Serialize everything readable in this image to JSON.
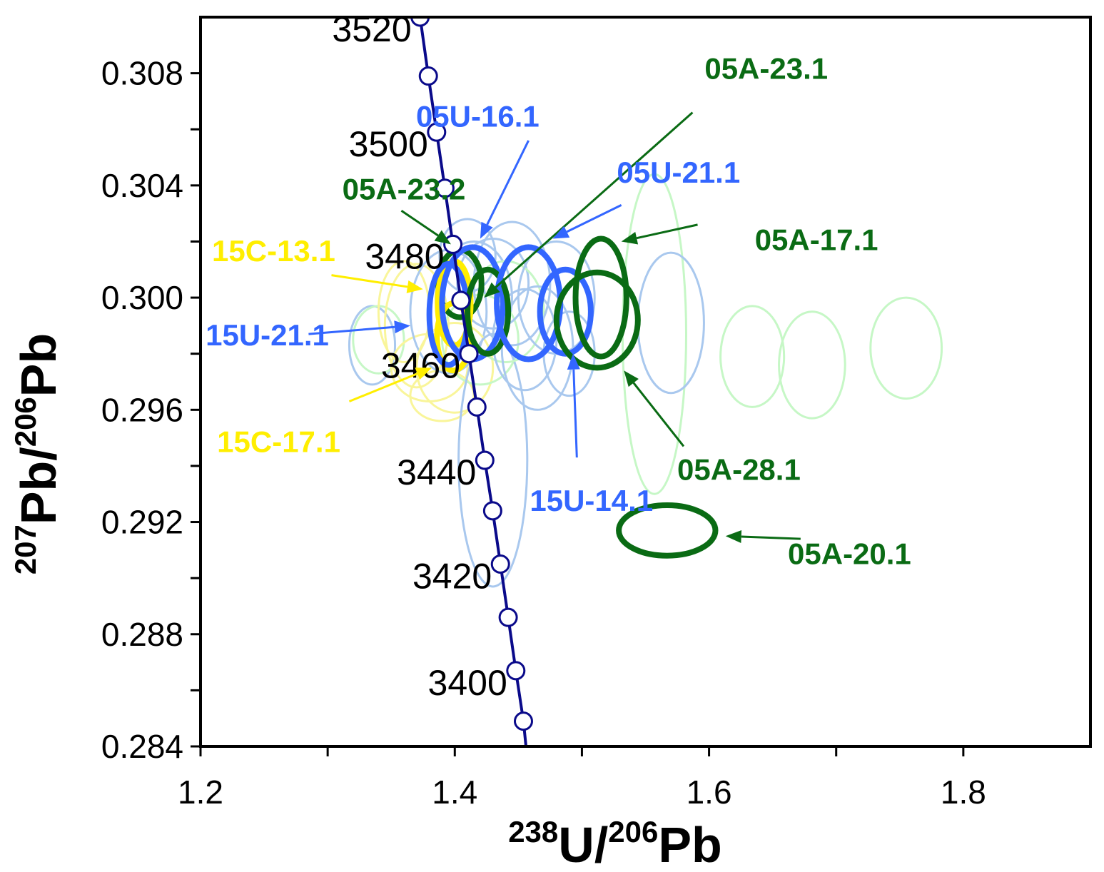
{
  "chart_data": {
    "type": "scatter",
    "xlabel": {
      "sup1": "238",
      "main1": "U/",
      "sup2": "206",
      "main2": "Pb"
    },
    "ylabel": {
      "sup1": "207",
      "main1": "Pb/",
      "sup2": "206",
      "main2": "Pb"
    },
    "xlim": [
      1.2,
      1.9
    ],
    "ylim": [
      0.284,
      0.31
    ],
    "x_ticks": [
      1.2,
      1.3,
      1.4,
      1.5,
      1.6,
      1.7,
      1.8
    ],
    "x_tick_labels": [
      "1.2",
      "",
      "1.4",
      "",
      "1.6",
      "",
      "1.8"
    ],
    "y_ticks": [
      0.284,
      0.286,
      0.288,
      0.29,
      0.292,
      0.294,
      0.296,
      0.298,
      0.3,
      0.302,
      0.304,
      0.306,
      0.308
    ],
    "y_tick_labels": [
      "0.284",
      "",
      "0.288",
      "",
      "0.292",
      "",
      "0.296",
      "",
      "0.300",
      "",
      "0.304",
      "",
      "0.308"
    ],
    "grid": false,
    "colors": {
      "concordia": "#0a0a8a",
      "green_dark": "#0a6b14",
      "blue": "#3366ff",
      "yellow": "#ffee00",
      "light_blue": "#a9c8ee",
      "light_green": "#c6f7c6",
      "light_yellow": "#f9f59a"
    },
    "concordia": {
      "points": [
        {
          "x": 1.3727,
          "y": 0.31,
          "age": 3520
        },
        {
          "x": 1.3792,
          "y": 0.3079,
          "age": 3510
        },
        {
          "x": 1.3857,
          "y": 0.3059,
          "age": 3500
        },
        {
          "x": 1.3922,
          "y": 0.3039,
          "age": 3490
        },
        {
          "x": 1.3985,
          "y": 0.3019,
          "age": 3480
        },
        {
          "x": 1.4048,
          "y": 0.2999,
          "age": 3470
        },
        {
          "x": 1.4111,
          "y": 0.298,
          "age": 3460
        },
        {
          "x": 1.4174,
          "y": 0.2961,
          "age": 3450
        },
        {
          "x": 1.4236,
          "y": 0.2942,
          "age": 3440
        },
        {
          "x": 1.4298,
          "y": 0.2924,
          "age": 3430
        },
        {
          "x": 1.4359,
          "y": 0.2905,
          "age": 3420
        },
        {
          "x": 1.442,
          "y": 0.2886,
          "age": 3410
        },
        {
          "x": 1.448,
          "y": 0.2867,
          "age": 3400
        },
        {
          "x": 1.454,
          "y": 0.2849,
          "age": 3390
        }
      ],
      "age_labels": [
        {
          "text": "3520",
          "age": 3520
        },
        {
          "text": "3500",
          "age": 3500
        },
        {
          "text": "3480",
          "age": 3480
        },
        {
          "text": "3460",
          "age": 3460
        },
        {
          "text": "3440",
          "age": 3440
        },
        {
          "text": "3420",
          "age": 3420
        },
        {
          "text": "3400",
          "age": 3400
        }
      ]
    },
    "background_ellipses": [
      {
        "cx": 1.335,
        "cy": 0.2983,
        "rx": 0.018,
        "ry": 0.0014,
        "color": "light_blue"
      },
      {
        "cx": 1.34,
        "cy": 0.2985,
        "rx": 0.02,
        "ry": 0.0012,
        "color": "light_green"
      },
      {
        "cx": 1.36,
        "cy": 0.2995,
        "rx": 0.02,
        "ry": 0.0018,
        "color": "light_yellow"
      },
      {
        "cx": 1.37,
        "cy": 0.299,
        "rx": 0.025,
        "ry": 0.0022,
        "color": "light_yellow"
      },
      {
        "cx": 1.38,
        "cy": 0.2975,
        "rx": 0.03,
        "ry": 0.0012,
        "color": "light_yellow"
      },
      {
        "cx": 1.39,
        "cy": 0.2965,
        "rx": 0.025,
        "ry": 0.0009,
        "color": "light_yellow"
      },
      {
        "cx": 1.395,
        "cy": 0.2995,
        "rx": 0.03,
        "ry": 0.0022,
        "color": "light_blue"
      },
      {
        "cx": 1.4,
        "cy": 0.2975,
        "rx": 0.03,
        "ry": 0.0016,
        "color": "light_yellow"
      },
      {
        "cx": 1.41,
        "cy": 0.3015,
        "rx": 0.022,
        "ry": 0.0013,
        "color": "light_blue"
      },
      {
        "cx": 1.415,
        "cy": 0.3,
        "rx": 0.03,
        "ry": 0.002,
        "color": "light_blue"
      },
      {
        "cx": 1.42,
        "cy": 0.2985,
        "rx": 0.03,
        "ry": 0.0016,
        "color": "light_green"
      },
      {
        "cx": 1.43,
        "cy": 0.3005,
        "rx": 0.028,
        "ry": 0.0016,
        "color": "light_blue"
      },
      {
        "cx": 1.43,
        "cy": 0.2942,
        "rx": 0.027,
        "ry": 0.0045,
        "color": "light_blue"
      },
      {
        "cx": 1.44,
        "cy": 0.2995,
        "rx": 0.03,
        "ry": 0.0018,
        "color": "light_green"
      },
      {
        "cx": 1.445,
        "cy": 0.3005,
        "rx": 0.03,
        "ry": 0.0022,
        "color": "light_blue"
      },
      {
        "cx": 1.455,
        "cy": 0.2985,
        "rx": 0.025,
        "ry": 0.0018,
        "color": "light_blue"
      },
      {
        "cx": 1.465,
        "cy": 0.2982,
        "rx": 0.028,
        "ry": 0.0022,
        "color": "light_blue"
      },
      {
        "cx": 1.48,
        "cy": 0.3,
        "rx": 0.03,
        "ry": 0.002,
        "color": "light_blue"
      },
      {
        "cx": 1.49,
        "cy": 0.298,
        "rx": 0.02,
        "ry": 0.0015,
        "color": "light_blue"
      },
      {
        "cx": 1.557,
        "cy": 0.2987,
        "rx": 0.025,
        "ry": 0.0057,
        "color": "light_green"
      },
      {
        "cx": 1.57,
        "cy": 0.2991,
        "rx": 0.026,
        "ry": 0.0025,
        "color": "light_blue"
      },
      {
        "cx": 1.634,
        "cy": 0.2979,
        "rx": 0.025,
        "ry": 0.0018,
        "color": "light_green"
      },
      {
        "cx": 1.681,
        "cy": 0.2976,
        "rx": 0.026,
        "ry": 0.0019,
        "color": "light_green"
      },
      {
        "cx": 1.755,
        "cy": 0.2982,
        "rx": 0.028,
        "ry": 0.0018,
        "color": "light_green"
      }
    ],
    "highlighted_ellipses": [
      {
        "id": "05A-23.2",
        "cx": 1.404,
        "cy": 0.3005,
        "rx": 0.017,
        "ry": 0.0012,
        "color": "green_dark"
      },
      {
        "id": "15C-13.1",
        "cx": 1.3995,
        "cy": 0.2998,
        "rx": 0.013,
        "ry": 0.0015,
        "color": "yellow"
      },
      {
        "id": "15C-17.1",
        "cx": 1.399,
        "cy": 0.2986,
        "rx": 0.013,
        "ry": 0.0012,
        "color": "yellow"
      },
      {
        "id": "15U-21.1",
        "cx": 1.395,
        "cy": 0.2994,
        "rx": 0.015,
        "ry": 0.0018,
        "color": "blue"
      },
      {
        "id": "05U-16.1",
        "cx": 1.414,
        "cy": 0.2998,
        "rx": 0.024,
        "ry": 0.002,
        "color": "blue"
      },
      {
        "id": "05A-23.1",
        "cx": 1.426,
        "cy": 0.2995,
        "rx": 0.016,
        "ry": 0.0015,
        "color": "green_dark"
      },
      {
        "id": "05U-21.1",
        "cx": 1.458,
        "cy": 0.2998,
        "rx": 0.025,
        "ry": 0.002,
        "color": "blue"
      },
      {
        "id": "15U-14.1",
        "cx": 1.487,
        "cy": 0.2995,
        "rx": 0.02,
        "ry": 0.0015,
        "color": "blue"
      },
      {
        "id": "05A-17.1",
        "cx": 1.515,
        "cy": 0.3,
        "rx": 0.02,
        "ry": 0.0021,
        "color": "green_dark"
      },
      {
        "id": "05A-28.1",
        "cx": 1.512,
        "cy": 0.2992,
        "rx": 0.032,
        "ry": 0.0017,
        "color": "green_dark"
      },
      {
        "id": "05A-20.1",
        "cx": 1.567,
        "cy": 0.2917,
        "rx": 0.038,
        "ry": 0.0009,
        "color": "green_dark"
      }
    ],
    "annotations": [
      {
        "text": "05A-23.1",
        "color": "green_dark",
        "text_x": 1.645,
        "text_y": 0.3078,
        "from_x": 1.587,
        "from_y": 0.3066,
        "to_x": 1.423,
        "to_y": 0.3,
        "anchor": "middle"
      },
      {
        "text": "05U-16.1",
        "color": "blue",
        "text_x": 1.418,
        "text_y": 0.3061,
        "from_x": 1.458,
        "from_y": 0.3056,
        "to_x": 1.42,
        "to_y": 0.3021,
        "anchor": "middle"
      },
      {
        "text": "05U-21.1",
        "color": "blue",
        "text_x": 1.576,
        "text_y": 0.3041,
        "from_x": 1.531,
        "from_y": 0.3033,
        "to_x": 1.477,
        "to_y": 0.3021,
        "anchor": "middle"
      },
      {
        "text": "05A-23.2",
        "color": "green_dark",
        "text_x": 1.36,
        "text_y": 0.3035,
        "from_x": 1.358,
        "from_y": 0.3031,
        "to_x": 1.397,
        "to_y": 0.3019,
        "anchor": "middle"
      },
      {
        "text": "05A-17.1",
        "color": "green_dark",
        "text_x": 1.636,
        "text_y": 0.3017,
        "from_x": 1.591,
        "from_y": 0.3026,
        "to_x": 1.531,
        "to_y": 0.302,
        "anchor": "start"
      },
      {
        "text": "15C-13.1",
        "color": "yellow",
        "text_x": 1.209,
        "text_y": 0.3013,
        "from_x": 1.303,
        "from_y": 0.3008,
        "to_x": 1.375,
        "to_y": 0.3003,
        "anchor": "start"
      },
      {
        "text": "15U-21.1",
        "color": "blue",
        "text_x": 1.204,
        "text_y": 0.2983,
        "from_x": 1.285,
        "from_y": 0.2987,
        "to_x": 1.365,
        "to_y": 0.299,
        "anchor": "start"
      },
      {
        "text": "15C-17.1",
        "color": "yellow",
        "text_x": 1.213,
        "text_y": 0.2945,
        "from_x": 1.317,
        "from_y": 0.2963,
        "to_x": 1.382,
        "to_y": 0.2975,
        "anchor": "start"
      },
      {
        "text": "15U-14.1",
        "color": "blue",
        "text_x": 1.459,
        "text_y": 0.2924,
        "from_x": 1.496,
        "from_y": 0.2943,
        "to_x": 1.493,
        "to_y": 0.298,
        "anchor": "start"
      },
      {
        "text": "05A-28.1",
        "color": "green_dark",
        "text_x": 1.575,
        "text_y": 0.2935,
        "from_x": 1.58,
        "from_y": 0.2947,
        "to_x": 1.533,
        "to_y": 0.2974,
        "anchor": "start"
      },
      {
        "text": "05A-20.1",
        "color": "green_dark",
        "text_x": 1.662,
        "text_y": 0.2905,
        "from_x": 1.672,
        "from_y": 0.2914,
        "to_x": 1.613,
        "to_y": 0.2915,
        "anchor": "start"
      }
    ]
  }
}
